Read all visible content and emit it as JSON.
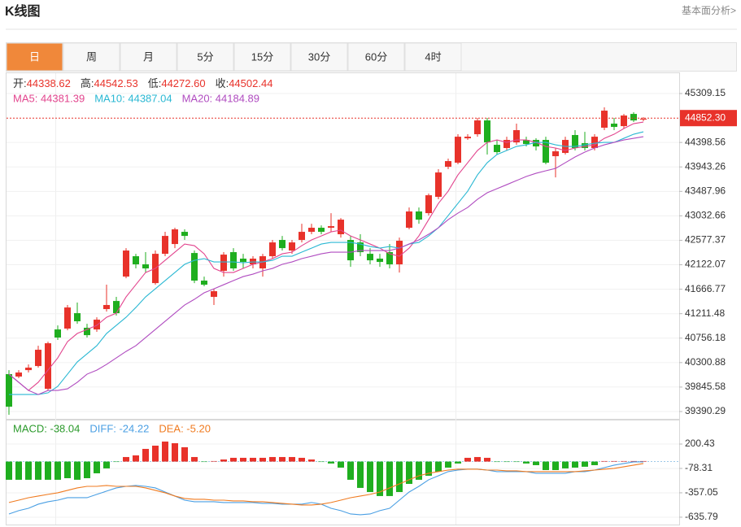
{
  "header": {
    "title": "K线图",
    "link": "基本面分析>"
  },
  "tabs": {
    "items": [
      "日",
      "周",
      "月",
      "5分",
      "15分",
      "30分",
      "60分",
      "4时"
    ],
    "active": 0
  },
  "chart_data": [
    {
      "type": "candlestick",
      "info": [
        {
          "label": "开:",
          "value": "44338.62"
        },
        {
          "label": "高:",
          "value": "44542.53"
        },
        {
          "label": "低:",
          "value": "44272.60"
        },
        {
          "label": "收:",
          "value": "44502.44"
        }
      ],
      "open": [
        40086,
        40041,
        40161,
        40237,
        39813,
        40918,
        40934,
        41221,
        40949,
        40918,
        41297,
        41448,
        41902,
        42281,
        42130,
        41781,
        42326,
        42508,
        42735,
        42341,
        41827,
        41524,
        42009,
        42357,
        42236,
        42130,
        42054,
        42281,
        42584,
        42387,
        42584,
        42735,
        42811,
        42811,
        42690,
        42584,
        42538,
        42326,
        42236,
        42357,
        42130,
        42811,
        43114,
        43083,
        43386,
        43946,
        44022,
        44476,
        44552,
        44809,
        44355,
        44295,
        44400,
        44446,
        44446,
        44446,
        44143,
        44204,
        44537,
        44385,
        44295,
        44673,
        44749,
        44703,
        44930,
        44824
      ],
      "high": [
        40161,
        40161,
        40267,
        40615,
        40691,
        40994,
        41373,
        41418,
        41024,
        41145,
        41751,
        41524,
        42432,
        42326,
        42357,
        42387,
        42735,
        42811,
        42781,
        42387,
        41902,
        41675,
        42357,
        42432,
        42326,
        42281,
        42326,
        42584,
        42659,
        42584,
        42886,
        42886,
        42856,
        43083,
        42992,
        42659,
        42690,
        42432,
        42326,
        42508,
        42629,
        43189,
        43189,
        43447,
        43901,
        44098,
        44552,
        44552,
        44855,
        44855,
        44446,
        44506,
        44749,
        44506,
        44476,
        44506,
        44295,
        44506,
        44628,
        44597,
        44552,
        45052,
        44855,
        44930,
        44961,
        44870
      ],
      "low": [
        39329,
        40010,
        40116,
        40207,
        39783,
        40722,
        40903,
        41024,
        40767,
        40873,
        41251,
        41176,
        41872,
        42054,
        41978,
        41751,
        42281,
        42432,
        42584,
        41781,
        41721,
        41373,
        41902,
        42009,
        42054,
        42054,
        41902,
        42236,
        42387,
        42326,
        42538,
        42690,
        42690,
        42735,
        42629,
        42084,
        42281,
        42130,
        42084,
        42054,
        41978,
        42781,
        42886,
        43038,
        43341,
        43901,
        43992,
        44446,
        44506,
        44174,
        44174,
        44249,
        44355,
        44325,
        44249,
        43992,
        43749,
        44174,
        44249,
        44249,
        44249,
        44628,
        44628,
        44658,
        44779,
        44794
      ],
      "close": [
        39480,
        40116,
        40207,
        40540,
        40661,
        40767,
        41327,
        41070,
        40812,
        41100,
        41373,
        41221,
        42387,
        42130,
        42054,
        42326,
        42659,
        42781,
        42659,
        41827,
        41751,
        41630,
        42311,
        42054,
        42175,
        42236,
        42281,
        42538,
        42432,
        42538,
        42735,
        42811,
        42735,
        42841,
        42962,
        42205,
        42357,
        42205,
        42175,
        42130,
        42569,
        43114,
        42962,
        43416,
        43840,
        44052,
        44506,
        44506,
        44809,
        44400,
        44219,
        44446,
        44628,
        44370,
        44325,
        44022,
        44234,
        44446,
        44295,
        44295,
        44506,
        44991,
        44688,
        44900,
        44809,
        44840
      ],
      "up_color": "#e8322a",
      "down_color": "#1fae1f",
      "series": [
        {
          "name": "MA5: 44381.39",
          "color": "#e2458e",
          "values": [
            40086,
            39934,
            39783,
            39934,
            40161,
            40388,
            40691,
            40843,
            40918,
            40994,
            41145,
            41221,
            41524,
            41751,
            41978,
            42054,
            42205,
            42357,
            42508,
            42478,
            42326,
            42054,
            41978,
            41978,
            42054,
            42130,
            42175,
            42236,
            42326,
            42357,
            42478,
            42584,
            42659,
            42735,
            42766,
            42659,
            42584,
            42508,
            42432,
            42326,
            42281,
            42432,
            42659,
            42962,
            43265,
            43492,
            43795,
            44022,
            44249,
            44400,
            44446,
            44400,
            44446,
            44446,
            44400,
            44325,
            44295,
            44249,
            44295,
            44325,
            44355,
            44476,
            44552,
            44658,
            44749,
            44779
          ]
        },
        {
          "name": "MA10: 44387.04",
          "color": "#2bb8d3",
          "values": [
            39707,
            39707,
            39707,
            39707,
            39738,
            39859,
            40086,
            40313,
            40464,
            40615,
            40843,
            40994,
            41145,
            41327,
            41524,
            41675,
            41827,
            41978,
            42130,
            42205,
            42236,
            42175,
            42175,
            42175,
            42160,
            42175,
            42175,
            42205,
            42281,
            42281,
            42357,
            42432,
            42508,
            42538,
            42538,
            42538,
            42508,
            42463,
            42432,
            42463,
            42432,
            42508,
            42538,
            42659,
            42811,
            43038,
            43265,
            43492,
            43795,
            44022,
            44174,
            44249,
            44325,
            44355,
            44400,
            44400,
            44355,
            44325,
            44325,
            44355,
            44385,
            44400,
            44400,
            44476,
            44552,
            44597
          ]
        },
        {
          "name": "MA20: 44184.89",
          "color": "#b04cc0",
          "values": [
            40086,
            39934,
            39783,
            39707,
            39783,
            39783,
            39813,
            39934,
            40086,
            40161,
            40267,
            40388,
            40509,
            40615,
            40767,
            40918,
            41070,
            41221,
            41373,
            41479,
            41600,
            41675,
            41751,
            41827,
            41902,
            41948,
            42009,
            42054,
            42130,
            42175,
            42236,
            42281,
            42326,
            42357,
            42357,
            42357,
            42387,
            42387,
            42387,
            42387,
            42432,
            42508,
            42584,
            42690,
            42811,
            42962,
            43083,
            43189,
            43341,
            43462,
            43538,
            43613,
            43689,
            43765,
            43825,
            43871,
            43916,
            44022,
            44128,
            44219,
            44295,
            44355,
            44400,
            44446,
            44476,
            44506
          ]
        }
      ],
      "last_price": {
        "value": 44852.3,
        "label": "44852.30"
      },
      "ylim": [
        39254,
        45688
      ],
      "yticks": [
        45309.15,
        44398.56,
        43943.26,
        43487.96,
        43032.66,
        42577.37,
        42122.07,
        41666.77,
        41211.48,
        40756.18,
        40300.88,
        39845.58,
        39390.29
      ]
    },
    {
      "type": "macd",
      "up_color": "#e8322a",
      "down_color": "#1fae1f",
      "series": [
        {
          "name": "MACD: -38.04",
          "color": "#2b9a2b",
          "type": "bar",
          "values": [
            -208,
            -208,
            -208,
            -208,
            -208,
            -208,
            -190,
            -208,
            -190,
            -134,
            -78,
            -4,
            52,
            71,
            145,
            182,
            229,
            210,
            164,
            52,
            -4,
            6,
            24,
            43,
            43,
            43,
            43,
            52,
            52,
            52,
            43,
            24,
            -4,
            -22,
            -69,
            -208,
            -301,
            -348,
            -394,
            -394,
            -348,
            -255,
            -208,
            -162,
            -115,
            -69,
            -22,
            43,
            52,
            43,
            -4,
            -4,
            -4,
            -22,
            -41,
            -97,
            -97,
            -78,
            -69,
            -59,
            -41,
            6,
            6,
            6,
            6,
            6
          ]
        },
        {
          "name": "DIFF: -24.22",
          "color": "#4a9fe3",
          "type": "line",
          "values": [
            -599,
            -561,
            -534,
            -487,
            -459,
            -441,
            -413,
            -413,
            -413,
            -375,
            -338,
            -301,
            -283,
            -273,
            -283,
            -301,
            -348,
            -394,
            -441,
            -459,
            -459,
            -459,
            -468,
            -468,
            -468,
            -468,
            -478,
            -478,
            -487,
            -487,
            -487,
            -468,
            -487,
            -534,
            -561,
            -599,
            -608,
            -599,
            -561,
            -534,
            -441,
            -348,
            -283,
            -208,
            -162,
            -115,
            -97,
            -87,
            -87,
            -97,
            -115,
            -115,
            -115,
            -115,
            -134,
            -134,
            -134,
            -134,
            -115,
            -115,
            -97,
            -69,
            -41,
            -22,
            -4,
            -4
          ]
        },
        {
          "name": "DEA: -5.20",
          "color": "#f07b20",
          "type": "line",
          "values": [
            -468,
            -441,
            -413,
            -394,
            -375,
            -357,
            -329,
            -301,
            -283,
            -283,
            -273,
            -283,
            -283,
            -283,
            -301,
            -329,
            -357,
            -394,
            -422,
            -431,
            -431,
            -441,
            -441,
            -450,
            -450,
            -459,
            -459,
            -468,
            -478,
            -487,
            -496,
            -496,
            -487,
            -468,
            -441,
            -413,
            -394,
            -375,
            -348,
            -301,
            -255,
            -208,
            -162,
            -134,
            -115,
            -97,
            -87,
            -87,
            -87,
            -97,
            -97,
            -106,
            -106,
            -115,
            -115,
            -115,
            -115,
            -115,
            -115,
            -106,
            -97,
            -87,
            -78,
            -59,
            -41,
            -22
          ]
        }
      ],
      "ylim": [
        -720,
        470
      ],
      "yticks": [
        200.43,
        -78.31,
        -357.05,
        -635.79
      ]
    }
  ]
}
